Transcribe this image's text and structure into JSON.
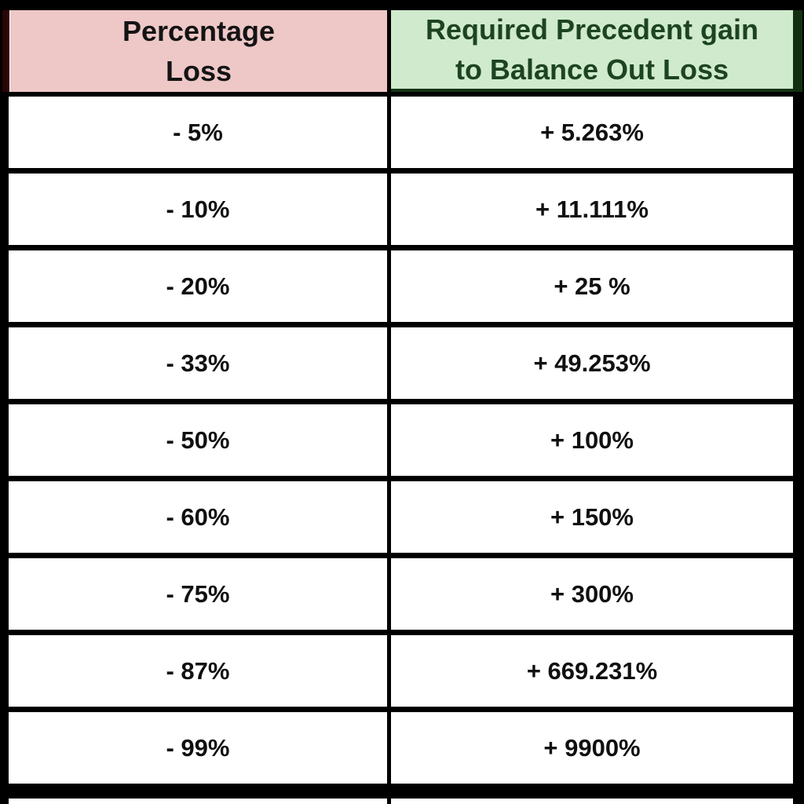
{
  "colors": {
    "header_loss_bg": "#eec7c7",
    "header_loss_text": "#141414",
    "header_gain_bg": "#cfeacc",
    "header_gain_text": "#1d4420",
    "header_gain_border": "#143314",
    "left_strip": "#2b0506",
    "right_strip": "#12300f",
    "cell_text": "#101010",
    "border": "#000000"
  },
  "table": {
    "columns": [
      {
        "name": "loss",
        "lines": [
          "Percentage",
          "Loss"
        ]
      },
      {
        "name": "gain",
        "lines": [
          "Required Precedent gain",
          "to Balance Out Loss"
        ]
      }
    ],
    "rows": [
      {
        "loss": "- 5%",
        "gain": "+ 5.263%"
      },
      {
        "loss": "- 10%",
        "gain": "+ 11.111%"
      },
      {
        "loss": "- 20%",
        "gain": "+ 25 %"
      },
      {
        "loss": "- 33%",
        "gain": "+ 49.253%"
      },
      {
        "loss": "- 50%",
        "gain": "+ 100%"
      },
      {
        "loss": "- 60%",
        "gain": "+ 150%"
      },
      {
        "loss": "- 75%",
        "gain": "+ 300%"
      },
      {
        "loss": "- 87%",
        "gain": "+ 669.231%"
      },
      {
        "loss": "- 99%",
        "gain": "+ 9900%"
      }
    ]
  },
  "chart_data": {
    "type": "table",
    "title": "",
    "columns": [
      "Percentage Loss",
      "Required Precedent gain to Balance Out Loss"
    ],
    "rows": [
      [
        "- 5%",
        "+ 5.263%"
      ],
      [
        "- 10%",
        "+ 11.111%"
      ],
      [
        "- 20%",
        "+ 25 %"
      ],
      [
        "- 33%",
        "+ 49.253%"
      ],
      [
        "- 50%",
        "+ 100%"
      ],
      [
        "- 60%",
        "+ 150%"
      ],
      [
        "- 75%",
        "+ 300%"
      ],
      [
        "- 87%",
        "+ 669.231%"
      ],
      [
        "- 99%",
        "+ 9900%"
      ]
    ],
    "loss_values_pct": [
      -5,
      -10,
      -20,
      -33,
      -50,
      -60,
      -75,
      -87,
      -99
    ],
    "gain_values_pct": [
      5.263,
      11.111,
      25,
      49.253,
      100,
      150,
      300,
      669.231,
      9900
    ]
  }
}
